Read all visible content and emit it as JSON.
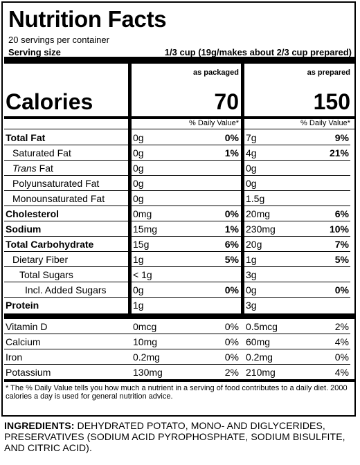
{
  "label": {
    "title": "Nutrition Facts",
    "servings_per_container": "20 servings per container",
    "serving_size_label": "Serving size",
    "serving_size_value": "1/3 cup (19g/makes about 2/3 cup prepared)",
    "col1_head": "as packaged",
    "col2_head": "as prepared",
    "calories_label": "Calories",
    "calories_packaged": "70",
    "calories_prepared": "150",
    "dv_head": "% Daily Value*",
    "nutrients": [
      {
        "name": "Total Fat",
        "bold": true,
        "indent": 0,
        "a1": "0g",
        "p1": "0%",
        "a2": "7g",
        "p2": "9%"
      },
      {
        "name": "Saturated Fat",
        "bold": false,
        "indent": 1,
        "a1": "0g",
        "p1": "1%",
        "a2": "4g",
        "p2": "21%"
      },
      {
        "name": "Trans Fat",
        "italic_prefix": "Trans",
        "suffix": " Fat",
        "bold": false,
        "indent": 1,
        "a1": "0g",
        "p1": "",
        "a2": "0g",
        "p2": ""
      },
      {
        "name": "Polyunsaturated Fat",
        "bold": false,
        "indent": 1,
        "a1": "0g",
        "p1": "",
        "a2": "0g",
        "p2": ""
      },
      {
        "name": "Monounsaturated Fat",
        "bold": false,
        "indent": 1,
        "a1": "0g",
        "p1": "",
        "a2": "1.5g",
        "p2": ""
      },
      {
        "name": "Cholesterol",
        "bold": true,
        "indent": 0,
        "a1": "0mg",
        "p1": "0%",
        "a2": "20mg",
        "p2": "6%"
      },
      {
        "name": "Sodium",
        "bold": true,
        "indent": 0,
        "a1": "15mg",
        "p1": "1%",
        "a2": "230mg",
        "p2": "10%"
      },
      {
        "name": "Total Carbohydrate",
        "bold": true,
        "indent": 0,
        "a1": "15g",
        "p1": "6%",
        "a2": "20g",
        "p2": "7%"
      },
      {
        "name": "Dietary Fiber",
        "bold": false,
        "indent": 1,
        "a1": "1g",
        "p1": "5%",
        "a2": "1g",
        "p2": "5%"
      },
      {
        "name": "Total Sugars",
        "bold": false,
        "indent": 2,
        "a1": "< 1g",
        "p1": "",
        "a2": "3g",
        "p2": ""
      },
      {
        "name": "Incl. Added Sugars",
        "bold": false,
        "indent": 3,
        "a1": "0g",
        "p1": "0%",
        "a2": "0g",
        "p2": "0%"
      },
      {
        "name": "Protein",
        "bold": true,
        "indent": 0,
        "a1": "1g",
        "p1": "",
        "a2": "3g",
        "p2": ""
      }
    ],
    "vitamins": [
      {
        "name": "Vitamin D",
        "a1": "0mcg",
        "p1": "0%",
        "a2": "0.5mcg",
        "p2": "2%"
      },
      {
        "name": "Calcium",
        "a1": "10mg",
        "p1": "0%",
        "a2": "60mg",
        "p2": "4%"
      },
      {
        "name": "Iron",
        "a1": "0.2mg",
        "p1": "0%",
        "a2": "0.2mg",
        "p2": "0%"
      },
      {
        "name": "Potassium",
        "a1": "130mg",
        "p1": "2%",
        "a2": "210mg",
        "p2": "4%"
      }
    ],
    "footnote": "* The % Daily Value tells you how much a nutrient in a serving of food contributes to a daily diet. 2000 calories a day is used for general nutrition advice."
  },
  "ingredients": {
    "heading": "INGREDIENTS:",
    "text": " DEHYDRATED POTATO, MONO- AND DIGLYCERIDES, PRESERVATIVES (SODIUM ACID PYROPHOSPHATE, SODIUM BISULFITE, AND CITRIC ACID)."
  }
}
